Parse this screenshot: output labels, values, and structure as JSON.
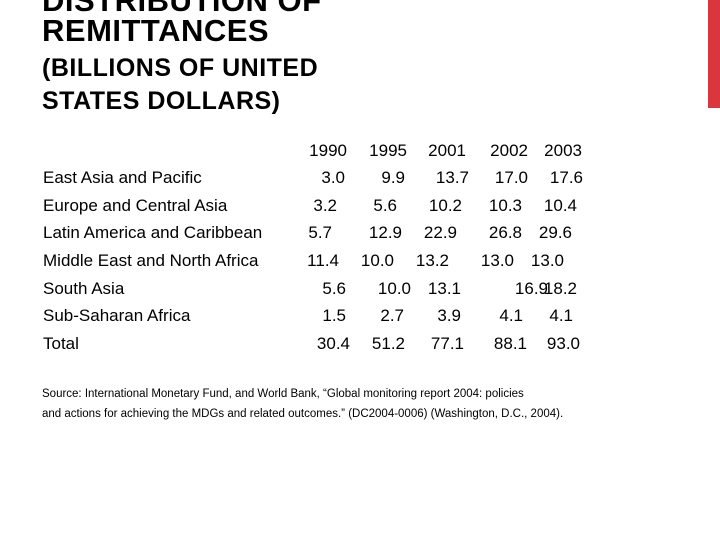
{
  "header": {
    "title_top_line": "DISTRIBUTION OF",
    "title": "REMITTANCES",
    "subtitle": "(BILLIONS OF UNITED STATES DOLLARS)"
  },
  "accent_color": "#d9363e",
  "table": {
    "columns": [
      "1990",
      "1995",
      "2001",
      "2002",
      "2003"
    ],
    "rows": [
      {
        "region": "East Asia and Pacific",
        "values": [
          "3.0",
          "9.9",
          "13.7",
          "17.0",
          "17.6"
        ]
      },
      {
        "region": "Europe and Central Asia",
        "values": [
          "3.2",
          "5.6",
          "10.2",
          "10.3",
          "10.4"
        ]
      },
      {
        "region": "Latin America and Caribbean",
        "values": [
          "5.7",
          "12.9",
          "22.9",
          "26.8",
          "29.6"
        ]
      },
      {
        "region": "Middle East and North Africa",
        "values": [
          "11.4",
          "10.0",
          "13.2",
          "13.0",
          "13.0"
        ]
      },
      {
        "region": "South Asia",
        "values": [
          "5.6",
          "10.0",
          "13.1",
          "16.9",
          "18.2"
        ]
      },
      {
        "region": "Sub-Saharan Africa",
        "values": [
          "1.5",
          "2.7",
          "3.9",
          "4.1",
          "4.1"
        ]
      },
      {
        "region": "Total",
        "values": [
          "30.4",
          "51.2",
          "77.1",
          "88.1",
          "93.0"
        ]
      }
    ]
  },
  "source": {
    "line1": "Source: International Monetary Fund, and World Bank, “Global monitoring report 2004: policies",
    "line2": "and actions for achieving the MDGs and related outcomes.” (DC2004-0006) (Washington, D.C., 2004)."
  }
}
